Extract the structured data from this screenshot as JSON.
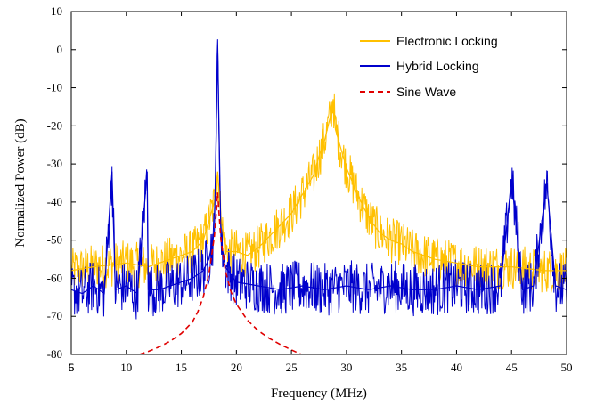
{
  "chart_data": {
    "type": "line",
    "title": "",
    "xlabel": "Frequency (MHz)",
    "ylabel": "Normalized Power (dB)",
    "xlim": [
      5,
      50
    ],
    "ylim": [
      -80,
      10
    ],
    "xticks": [
      "5",
      "10",
      "15",
      "20",
      "25",
      "30",
      "35",
      "40",
      "45",
      "50"
    ],
    "yticks": [
      "10",
      "0",
      "-10",
      "-20",
      "-30",
      "-40",
      "-50",
      "-60",
      "-70",
      "-80"
    ],
    "extra_xtick": "6",
    "grid": false,
    "legend_position": "top-right",
    "series": [
      {
        "name": "Electronic Locking",
        "color": "#FFC000",
        "style": "solid",
        "x": [
          5,
          7,
          10,
          12,
          14,
          15,
          16,
          17,
          17.5,
          18,
          18.3,
          18.6,
          19,
          20,
          21,
          22,
          23,
          24,
          25,
          26,
          27,
          27.5,
          28,
          28.5,
          28.8,
          29,
          29.5,
          30,
          31,
          32,
          33,
          34,
          35,
          36,
          38,
          40,
          42,
          45,
          48,
          50
        ],
        "y": [
          -58,
          -57,
          -56,
          -57,
          -55,
          -54,
          -53,
          -50,
          -45,
          -40,
          -32,
          -44,
          -53,
          -53,
          -54,
          -52,
          -49,
          -46,
          -43,
          -38,
          -33,
          -28,
          -24,
          -18,
          -13,
          -21,
          -26,
          -31,
          -38,
          -44,
          -48,
          -50,
          -51,
          -53,
          -55,
          -56,
          -57,
          -57,
          -58,
          -58
        ]
      },
      {
        "name": "Hybrid Locking",
        "color": "#0000CC",
        "style": "solid",
        "x": [
          5,
          6,
          7,
          8,
          8.7,
          9,
          10,
          11,
          11.9,
          12,
          13,
          14,
          15,
          16,
          17,
          17.5,
          18,
          18.3,
          18.6,
          19,
          20,
          22,
          24,
          26,
          28,
          30,
          32,
          34,
          36,
          38,
          40,
          42,
          44,
          45,
          46,
          47,
          48.2,
          49,
          50
        ],
        "y": [
          -63,
          -64,
          -62,
          -64,
          -32,
          -63,
          -62,
          -64,
          -32,
          -63,
          -63,
          -62,
          -61,
          -60,
          -58,
          -55,
          -48,
          0,
          -50,
          -57,
          -61,
          -62,
          -63,
          -62,
          -63,
          -62,
          -63,
          -62,
          -63,
          -63,
          -62,
          -63,
          -62,
          -34,
          -63,
          -62,
          -35,
          -62,
          -63
        ]
      },
      {
        "name": "Sine Wave",
        "color": "#E00000",
        "style": "dashed",
        "x": [
          11.2,
          12,
          13,
          14,
          15,
          16,
          16.5,
          17,
          17.5,
          18,
          18.2,
          18.3,
          18.4,
          18.6,
          19,
          19.5,
          20,
          21,
          22,
          23,
          24,
          25,
          25.9
        ],
        "y": [
          -80,
          -79.2,
          -78,
          -76.5,
          -74.5,
          -71.5,
          -68.8,
          -64.8,
          -59,
          -49,
          -42,
          -37.5,
          -42,
          -50,
          -58,
          -63.5,
          -66.8,
          -71,
          -73.8,
          -75.8,
          -77.4,
          -78.8,
          -80
        ]
      }
    ]
  }
}
